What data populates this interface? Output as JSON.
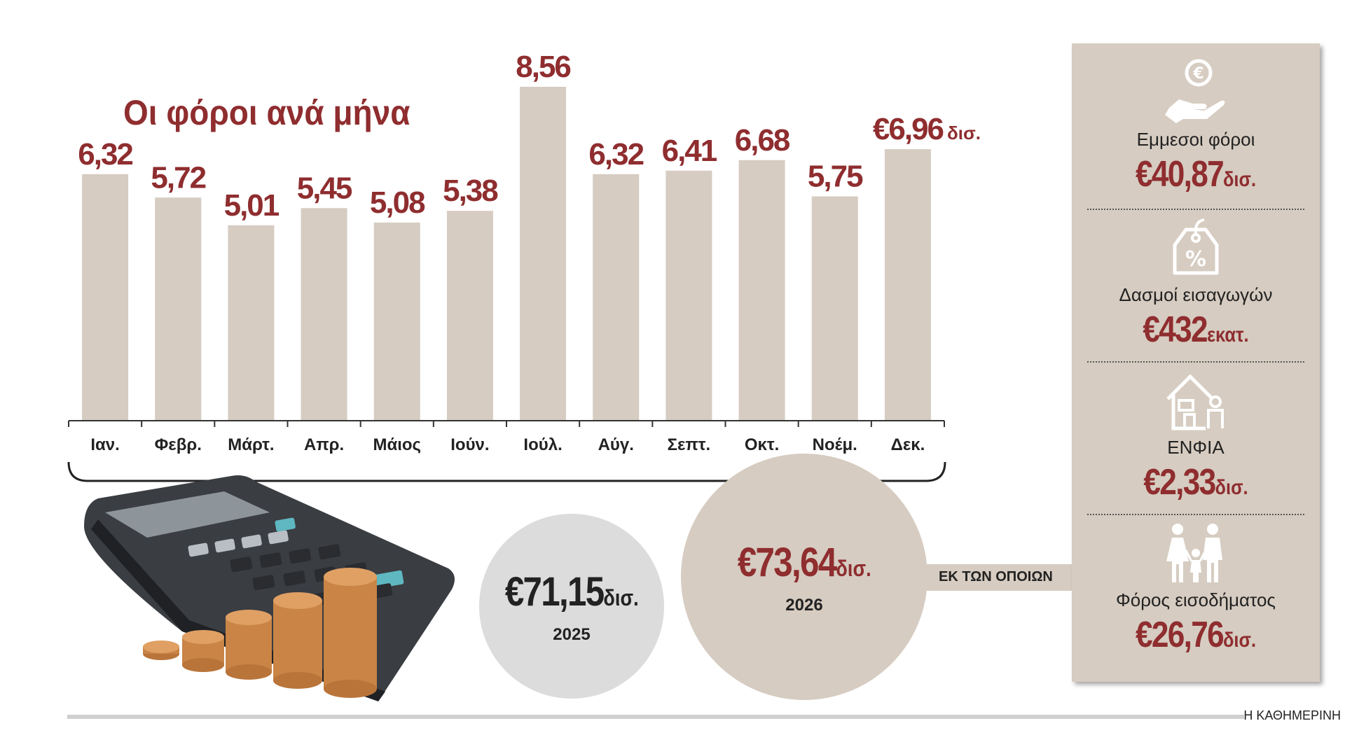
{
  "chart_data": {
    "type": "bar",
    "title": "Οι φόροι ανά μήνα",
    "categories": [
      "Ιαν.",
      "Φεβρ.",
      "Μάρτ.",
      "Απρ.",
      "Μάιος",
      "Ιούν.",
      "Ιούλ.",
      "Αύγ.",
      "Σεπτ.",
      "Οκτ.",
      "Νοέμ.",
      "Δεκ."
    ],
    "values": [
      6.32,
      5.72,
      5.01,
      5.45,
      5.08,
      5.38,
      8.56,
      6.32,
      6.41,
      6.68,
      5.75,
      6.96
    ],
    "value_labels": [
      "6,32",
      "5,72",
      "5,01",
      "5,45",
      "5,08",
      "5,38",
      "8,56",
      "6,32",
      "6,41",
      "6,68",
      "5,75",
      "€6,96"
    ],
    "last_label_unit": "δισ.",
    "bar_color": "#d6ccc1",
    "label_color": "#8f2d2f",
    "ylim": [
      0,
      8.56
    ],
    "grid": false
  },
  "totals": {
    "y2025": {
      "amount": "€71,15",
      "unit": "δισ.",
      "year": "2025",
      "value": 71.15
    },
    "y2026": {
      "amount": "€73,64",
      "unit": "δισ.",
      "year": "2026",
      "value": 73.64
    }
  },
  "connector_label": "ΕΚ ΤΩΝ ΟΠΟΙΩΝ",
  "breakdown": [
    {
      "icon": "hand-euro-icon",
      "label": "Εμμεσοι φόροι",
      "amount": "€40,87",
      "unit": "δισ."
    },
    {
      "icon": "price-tag-percent-icon",
      "label": "Δασμοί εισαγωγών",
      "amount": "€432",
      "unit": "εκατ."
    },
    {
      "icon": "house-person-icon",
      "label": "ΕΝΦΙΑ",
      "amount": "€2,33",
      "unit": "δισ."
    },
    {
      "icon": "family-icon",
      "label": "Φόρος εισοδήματος",
      "amount": "€26,76",
      "unit": "δισ."
    }
  ],
  "footer": {
    "brand": "Η ΚΑΘΗΜΕΡΙΝΗ"
  },
  "colors": {
    "accent": "#8f2d2f",
    "beige": "#d6ccc1",
    "grey": "#dcdcdc"
  }
}
